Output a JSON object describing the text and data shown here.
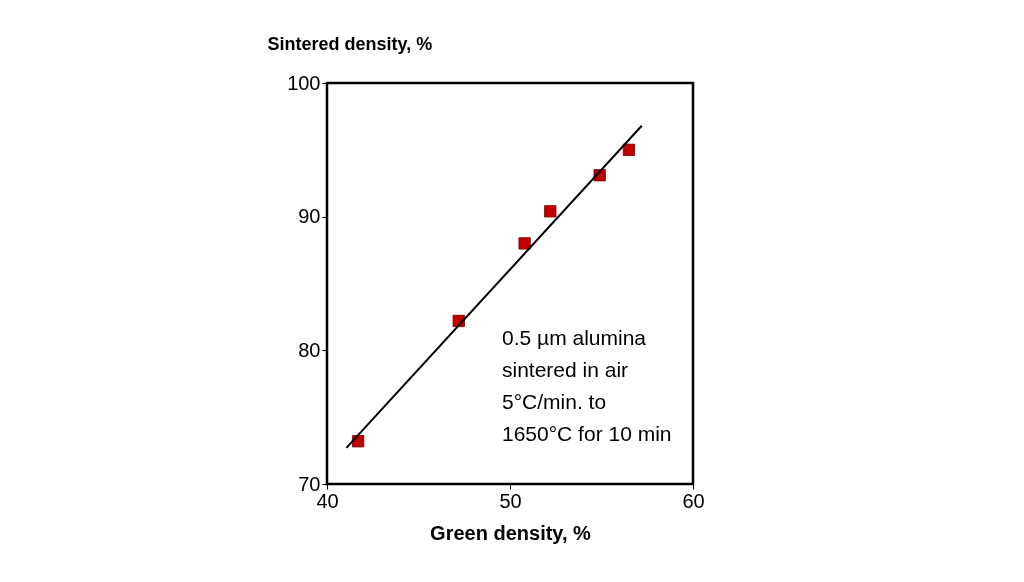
{
  "chart_data": {
    "type": "scatter",
    "xlabel": "Green density, %",
    "ylabel": "Sintered density, %",
    "xlim": [
      40,
      60
    ],
    "xticks": [
      40,
      50,
      60
    ],
    "ylim": [
      70,
      100
    ],
    "yticks": [
      70,
      80,
      90,
      100
    ],
    "grid": false,
    "marker": "square",
    "annotations": [
      "0.5 µm alumina",
      "sintered in air",
      "5°C/min. to",
      "1650°C for 10 min"
    ],
    "series": [
      {
        "type": "scatter",
        "color": "#c00000",
        "x": [
          41.7,
          47.2,
          50.8,
          52.2,
          54.9,
          56.5
        ],
        "values": [
          73.2,
          82.2,
          88.0,
          90.4,
          93.1,
          95.0
        ]
      },
      {
        "type": "line",
        "color": "#000000",
        "line_style": "solid",
        "marker": "none",
        "x": [
          41.06,
          57.2
        ],
        "values": [
          72.7,
          96.8
        ]
      }
    ]
  }
}
